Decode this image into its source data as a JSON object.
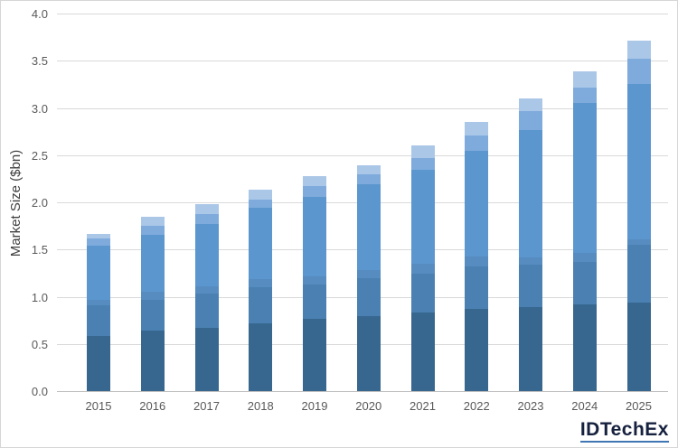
{
  "chart_data": {
    "type": "bar",
    "stacked": true,
    "title": "",
    "xlabel": "",
    "ylabel": "Market Size ($bn)",
    "ylim": [
      0,
      4
    ],
    "y_tick_step": 0.5,
    "y_ticks": [
      "0.0",
      "0.5",
      "1.0",
      "1.5",
      "2.0",
      "2.5",
      "3.0",
      "3.5",
      "4.0"
    ],
    "grid": true,
    "legend": "none",
    "categories": [
      "2015",
      "2016",
      "2017",
      "2018",
      "2019",
      "2020",
      "2021",
      "2022",
      "2023",
      "2024",
      "2025"
    ],
    "series": [
      {
        "name": "segment-1-darkest",
        "color": "#37678f",
        "values": [
          0.58,
          0.64,
          0.67,
          0.72,
          0.77,
          0.79,
          0.83,
          0.87,
          0.89,
          0.92,
          0.94
        ]
      },
      {
        "name": "segment-2-dark",
        "color": "#4a81b2",
        "values": [
          0.33,
          0.33,
          0.36,
          0.38,
          0.36,
          0.41,
          0.41,
          0.45,
          0.45,
          0.45,
          0.61
        ]
      },
      {
        "name": "segment-3-medium",
        "color": "#568cc0",
        "values": [
          0.06,
          0.08,
          0.08,
          0.09,
          0.09,
          0.08,
          0.11,
          0.11,
          0.08,
          0.09,
          0.06
        ]
      },
      {
        "name": "segment-4-light",
        "color": "#5b96ce",
        "values": [
          0.57,
          0.61,
          0.66,
          0.75,
          0.84,
          0.91,
          0.99,
          1.12,
          1.35,
          1.59,
          1.64
        ]
      },
      {
        "name": "segment-5-lighter",
        "color": "#7fabdc",
        "values": [
          0.08,
          0.09,
          0.11,
          0.09,
          0.11,
          0.11,
          0.13,
          0.16,
          0.2,
          0.17,
          0.27
        ]
      },
      {
        "name": "segment-6-lightest",
        "color": "#aac7e8",
        "values": [
          0.05,
          0.1,
          0.1,
          0.1,
          0.11,
          0.09,
          0.13,
          0.14,
          0.13,
          0.17,
          0.19
        ]
      }
    ],
    "totals": [
      1.67,
      1.85,
      1.98,
      2.13,
      2.28,
      2.39,
      2.6,
      2.85,
      3.1,
      3.39,
      3.71
    ]
  },
  "axis_colors": {
    "gridline": "#d9d9d9",
    "axis_line": "#bfbfbf",
    "tick_label": "#595959",
    "axis_title": "#404040"
  },
  "logo": {
    "text": "IDTechEx",
    "text_color": "#16213e",
    "underline_color": "#4076b4"
  }
}
